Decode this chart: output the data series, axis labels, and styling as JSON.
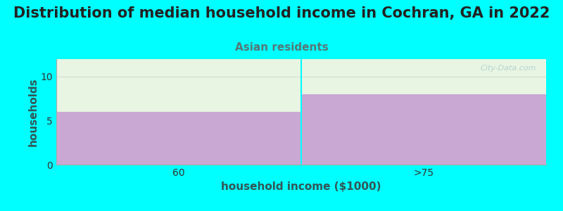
{
  "title": "Distribution of median household income in Cochran, GA in 2022",
  "subtitle": "Asian residents",
  "categories": [
    "60",
    ">75"
  ],
  "values": [
    6,
    8
  ],
  "bar_color": "#C9A8D4",
  "plot_bg_top_color": "#E8F5E2",
  "ylim": [
    0,
    12
  ],
  "yticks": [
    0,
    5,
    10
  ],
  "xlabel": "household income ($1000)",
  "ylabel": "households",
  "background_color": "#00FFFF",
  "title_fontsize": 15,
  "subtitle_fontsize": 11,
  "subtitle_color": "#557777",
  "axis_label_color": "#335555",
  "watermark": "City-Data.com"
}
